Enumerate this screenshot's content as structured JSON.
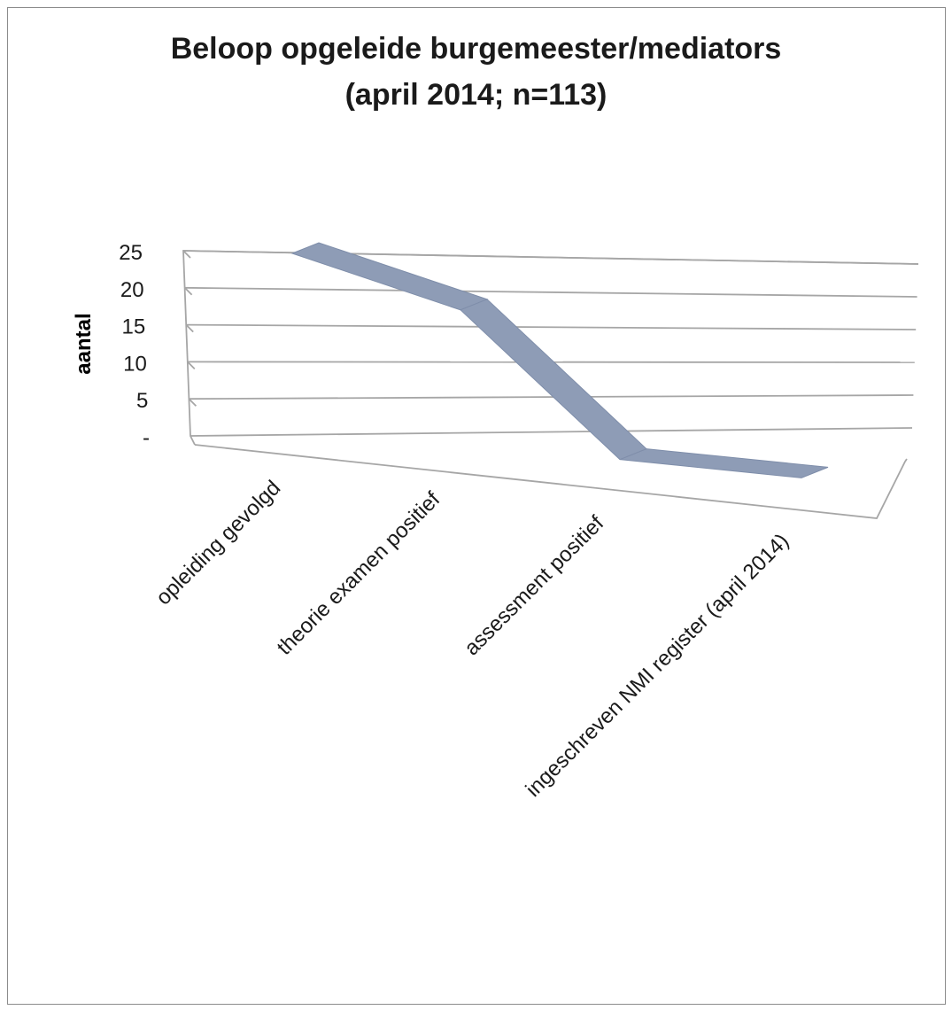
{
  "chart_data": {
    "type": "line",
    "style": "3d-ribbon",
    "title": [
      "Beloop opgeleide burgemeester/mediators",
      "(april 2014; n=113)"
    ],
    "ylabel": "aantal",
    "xlabel": "",
    "categories": [
      "opleiding gevolgd",
      "theorie examen positief",
      "assessment positief",
      "ingeschreven NMI register (april 2014)"
    ],
    "series": [
      {
        "values": [
          25,
          19,
          1,
          0
        ],
        "color": "#8e9cb6"
      }
    ],
    "yticks": [
      "-",
      "5",
      "10",
      "15",
      "20",
      "25"
    ],
    "ytick_values": [
      0,
      5,
      10,
      15,
      20,
      25
    ],
    "ylim": [
      0,
      25
    ],
    "grid": true,
    "legend": "none"
  }
}
